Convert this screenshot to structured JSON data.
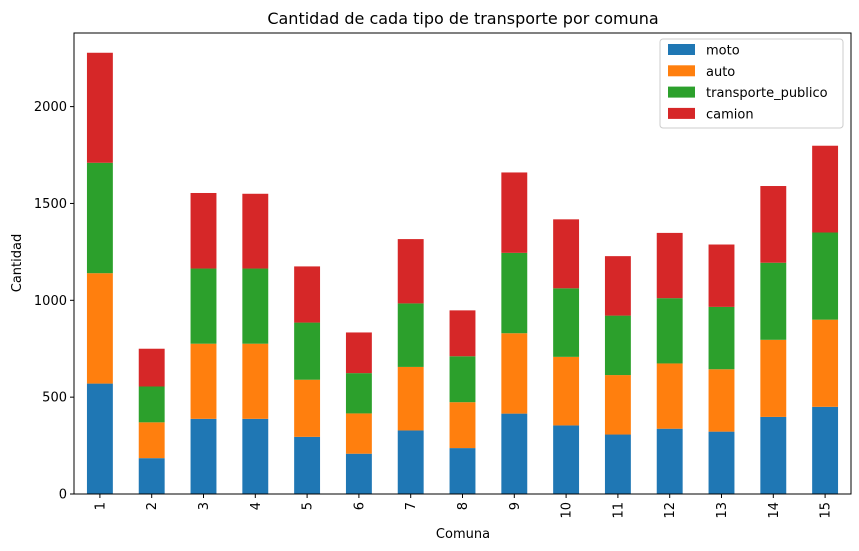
{
  "chart_data": {
    "type": "bar",
    "stacked": true,
    "title": "Cantidad de cada tipo de transporte por comuna",
    "xlabel": "Comuna",
    "ylabel": "Cantidad",
    "categories": [
      "1",
      "2",
      "3",
      "4",
      "5",
      "6",
      "7",
      "8",
      "9",
      "10",
      "11",
      "12",
      "13",
      "14",
      "15"
    ],
    "ylim": [
      0,
      2380
    ],
    "yticks": [
      0,
      500,
      1000,
      1500,
      2000
    ],
    "legend_position": "top-right",
    "series": [
      {
        "name": "moto",
        "color": "#1f77b4",
        "values": [
          570,
          185,
          388,
          388,
          295,
          208,
          328,
          237,
          415,
          354,
          307,
          337,
          322,
          398,
          450
        ]
      },
      {
        "name": "auto",
        "color": "#ff7f0e",
        "values": [
          570,
          185,
          388,
          388,
          295,
          208,
          328,
          237,
          415,
          354,
          307,
          337,
          322,
          398,
          450
        ]
      },
      {
        "name": "transporte_publico",
        "color": "#2ca02c",
        "values": [
          570,
          185,
          388,
          388,
          295,
          208,
          328,
          237,
          415,
          354,
          307,
          337,
          322,
          398,
          450
        ]
      },
      {
        "name": "camion",
        "color": "#d62728",
        "values": [
          568,
          195,
          390,
          386,
          290,
          210,
          332,
          237,
          415,
          356,
          307,
          337,
          322,
          396,
          448
        ]
      }
    ]
  }
}
